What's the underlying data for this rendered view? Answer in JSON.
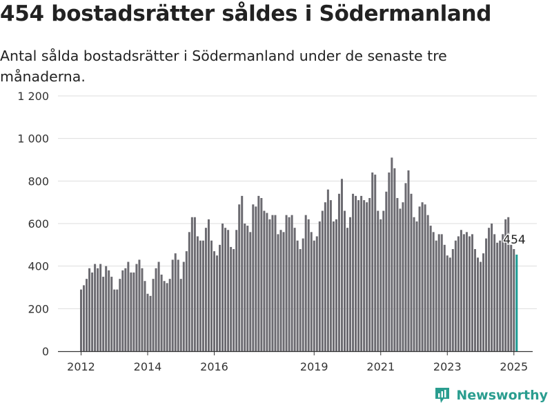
{
  "title": "454 bostadsrätter såldes i Södermanland",
  "subtitle": "Antal sålda bostadsrätter i Södermanland under de senaste tre månaderna.",
  "brand": "Newsworthy",
  "colors": {
    "bar": "#6b6a70",
    "highlight": "#1a9a93",
    "grid": "#dddddd",
    "brand": "#2a9d8f"
  },
  "chart_data": {
    "type": "bar",
    "x_start": "2012-01",
    "xlabel": "",
    "ylabel": "",
    "ylim": [
      0,
      1200
    ],
    "y_ticks": [
      0,
      200,
      400,
      600,
      800,
      1000,
      1200
    ],
    "y_tick_labels": [
      "0",
      "200",
      "400",
      "600",
      "800",
      "1 000",
      "1 200"
    ],
    "x_tick_labels": [
      {
        "label": "2012",
        "index": 0
      },
      {
        "label": "2014",
        "index": 24
      },
      {
        "label": "2016",
        "index": 48
      },
      {
        "label": "2019",
        "index": 84
      },
      {
        "label": "2021",
        "index": 108
      },
      {
        "label": "2023",
        "index": 132
      },
      {
        "label": "2025",
        "index": 156
      }
    ],
    "highlight_index": 157,
    "annotation": "454",
    "grid": true,
    "values": [
      290,
      310,
      340,
      390,
      370,
      410,
      390,
      410,
      350,
      400,
      380,
      350,
      290,
      290,
      340,
      380,
      390,
      420,
      370,
      370,
      410,
      430,
      390,
      330,
      270,
      260,
      340,
      390,
      420,
      360,
      330,
      320,
      340,
      430,
      460,
      430,
      340,
      420,
      470,
      560,
      630,
      630,
      540,
      520,
      520,
      580,
      620,
      520,
      470,
      450,
      500,
      600,
      580,
      570,
      490,
      480,
      570,
      690,
      730,
      600,
      590,
      560,
      690,
      680,
      730,
      720,
      660,
      650,
      620,
      640,
      640,
      550,
      570,
      560,
      640,
      630,
      640,
      580,
      520,
      480,
      530,
      640,
      620,
      560,
      520,
      540,
      610,
      660,
      700,
      760,
      710,
      610,
      620,
      740,
      810,
      660,
      580,
      630,
      740,
      730,
      710,
      730,
      710,
      700,
      720,
      840,
      830,
      660,
      620,
      660,
      750,
      840,
      910,
      860,
      720,
      670,
      700,
      790,
      850,
      740,
      630,
      610,
      680,
      700,
      690,
      640,
      590,
      560,
      520,
      550,
      550,
      500,
      450,
      440,
      480,
      520,
      540,
      570,
      550,
      560,
      540,
      550,
      480,
      440,
      420,
      460,
      530,
      580,
      600,
      550,
      510,
      520,
      550,
      620,
      630,
      500,
      480,
      454
    ]
  }
}
